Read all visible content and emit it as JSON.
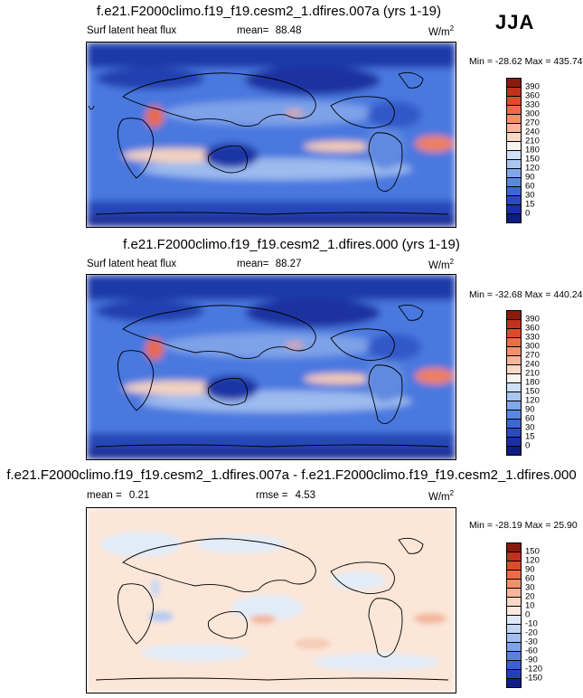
{
  "season": "JJA",
  "panels": [
    {
      "title": "f.e21.F2000climo.f19_f19.cesm2_1.dfires.007a (yrs 1-19)",
      "left_label": "Surf latent heat flux",
      "stat_label": "mean=",
      "stat_value": "88.48",
      "stat2_label": "",
      "stat2_value": "",
      "units": "W/m",
      "units_sup": "2",
      "minmax": "Min = -28.62 Max = 435.74",
      "colorbar_labels": [
        "390",
        "360",
        "330",
        "300",
        "270",
        "240",
        "210",
        "180",
        "150",
        "120",
        "90",
        "60",
        "30",
        "15",
        "0"
      ],
      "colorbar_colors": [
        "#8b1a0e",
        "#c2301e",
        "#e04a2c",
        "#ef6b48",
        "#f58f6e",
        "#f8b59a",
        "#fad8c6",
        "#f6f2ee",
        "#cfe0f6",
        "#a9c6f1",
        "#7fa7ea",
        "#5b86e3",
        "#3f66d6",
        "#2a49c4",
        "#1a30a6",
        "#0c1c80"
      ]
    },
    {
      "title": "f.e21.F2000climo.f19_f19.cesm2_1.dfires.000 (yrs 1-19)",
      "left_label": "Surf latent heat flux",
      "stat_label": "mean=",
      "stat_value": "88.27",
      "stat2_label": "",
      "stat2_value": "",
      "units": "W/m",
      "units_sup": "2",
      "minmax": "Min = -32.68 Max = 440.24",
      "colorbar_labels": [
        "390",
        "360",
        "330",
        "300",
        "270",
        "240",
        "210",
        "180",
        "150",
        "120",
        "90",
        "60",
        "30",
        "15",
        "0"
      ],
      "colorbar_colors": [
        "#8b1a0e",
        "#c2301e",
        "#e04a2c",
        "#ef6b48",
        "#f58f6e",
        "#f8b59a",
        "#fad8c6",
        "#f6f2ee",
        "#cfe0f6",
        "#a9c6f1",
        "#7fa7ea",
        "#5b86e3",
        "#3f66d6",
        "#2a49c4",
        "#1a30a6",
        "#0c1c80"
      ]
    },
    {
      "title": "f.e21.F2000climo.f19_f19.cesm2_1.dfires.007a - f.e21.F2000climo.f19_f19.cesm2_1.dfires.000",
      "left_label": "",
      "stat_label": "mean =",
      "stat_value": "0.21",
      "stat2_label": "rmse =",
      "stat2_value": "4.53",
      "units": "W/m",
      "units_sup": "2",
      "minmax": "Min = -28.19 Max = 25.90",
      "colorbar_labels": [
        "150",
        "120",
        "90",
        "60",
        "30",
        "20",
        "10",
        "0",
        "-10",
        "-20",
        "-30",
        "-60",
        "-90",
        "-120",
        "-150"
      ],
      "colorbar_colors": [
        "#8b1a0e",
        "#c2301e",
        "#e04a2c",
        "#ef6b48",
        "#f58f6e",
        "#f8b59a",
        "#fad8c6",
        "#fce9dd",
        "#dde9f8",
        "#c3d6f3",
        "#a4bfee",
        "#7fa2e8",
        "#5b80df",
        "#3a5fd2",
        "#2440b8",
        "#0e1f8a"
      ]
    }
  ],
  "chart_data": [
    {
      "type": "heatmap",
      "title": "f.e21.F2000climo.f19_f19.cesm2_1.dfires.007a (yrs 1-19)",
      "variable": "Surf latent heat flux",
      "units": "W/m2",
      "mean": 88.48,
      "min": -28.62,
      "max": 435.74,
      "levels": [
        0,
        15,
        30,
        60,
        90,
        120,
        150,
        180,
        210,
        240,
        270,
        300,
        330,
        360,
        390
      ]
    },
    {
      "type": "heatmap",
      "title": "f.e21.F2000climo.f19_f19.cesm2_1.dfires.000 (yrs 1-19)",
      "variable": "Surf latent heat flux",
      "units": "W/m2",
      "mean": 88.27,
      "min": -32.68,
      "max": 440.24,
      "levels": [
        0,
        15,
        30,
        60,
        90,
        120,
        150,
        180,
        210,
        240,
        270,
        300,
        330,
        360,
        390
      ]
    },
    {
      "type": "heatmap",
      "title": "f.e21.F2000climo.f19_f19.cesm2_1.dfires.007a - f.e21.F2000climo.f19_f19.cesm2_1.dfires.000",
      "units": "W/m2",
      "mean": 0.21,
      "rmse": 4.53,
      "min": -28.19,
      "max": 25.9,
      "levels": [
        -150,
        -120,
        -90,
        -60,
        -30,
        -20,
        -10,
        0,
        10,
        20,
        30,
        60,
        90,
        120,
        150
      ]
    }
  ]
}
